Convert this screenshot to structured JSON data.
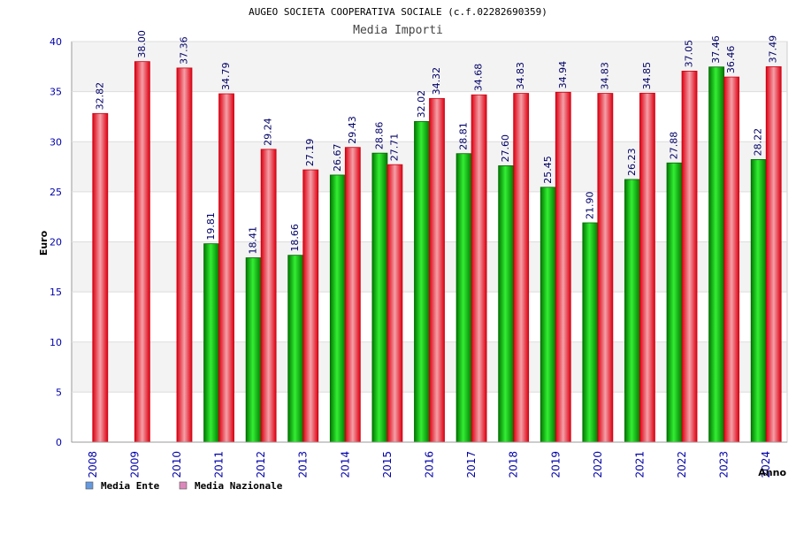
{
  "chart_data": {
    "type": "bar",
    "title": "AUGEO SOCIETA COOPERATIVA SOCIALE (c.f.02282690359)",
    "subtitle": "Media Importi",
    "xlabel": "Anno",
    "ylabel": "Euro",
    "ylim": [
      0,
      40
    ],
    "yticks": [
      0,
      5,
      10,
      15,
      20,
      25,
      30,
      35,
      40
    ],
    "grid": true,
    "legend_position": "bottom-left",
    "categories": [
      "2008",
      "2009",
      "2010",
      "2011",
      "2012",
      "2013",
      "2014",
      "2015",
      "2016",
      "2017",
      "2018",
      "2019",
      "2020",
      "2021",
      "2022",
      "2023",
      "2024"
    ],
    "series": [
      {
        "name": "Media Ente",
        "color": "#00b400",
        "legend_color": "#6699dd",
        "values": [
          null,
          null,
          null,
          19.81,
          18.41,
          18.66,
          26.67,
          28.86,
          32.02,
          28.81,
          27.6,
          25.45,
          21.9,
          26.23,
          27.88,
          37.46,
          28.22
        ],
        "labels": [
          "",
          "",
          "",
          "19.81",
          "18.41",
          "18.66",
          "26.67",
          "28.86",
          "32.02",
          "28.81",
          "27.60",
          "25.45",
          "21.90",
          "26.23",
          "27.88",
          "37.46",
          "28.22"
        ]
      },
      {
        "name": "Media Nazionale",
        "color": "#ee2233",
        "legend_color": "#dd88bb",
        "values": [
          32.82,
          38.0,
          37.36,
          34.79,
          29.24,
          27.19,
          29.43,
          27.71,
          34.32,
          34.68,
          34.83,
          34.94,
          34.83,
          34.85,
          37.05,
          36.46,
          37.49
        ],
        "labels": [
          "32.82",
          "38.00",
          "37.36",
          "34.79",
          "29.24",
          "27.19",
          "29.43",
          "27.71",
          "34.32",
          "34.68",
          "34.83",
          "34.94",
          "34.83",
          "34.85",
          "37.05",
          "36.46",
          "37.49"
        ]
      }
    ]
  }
}
